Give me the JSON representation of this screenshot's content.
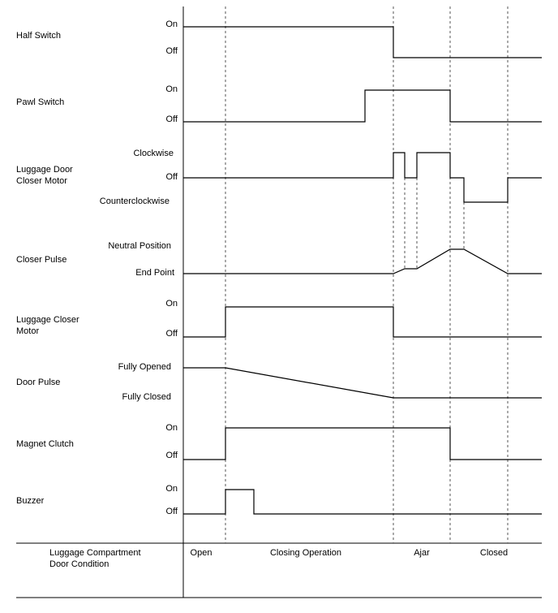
{
  "signals": [
    {
      "name": [
        "Half Switch"
      ],
      "states": [
        "On",
        "Off"
      ]
    },
    {
      "name": [
        "Pawl Switch"
      ],
      "states": [
        "On",
        "Off"
      ]
    },
    {
      "name": [
        "Luggage Door",
        "Closer Motor"
      ],
      "states": [
        "Clockwise",
        "Off",
        "Counterclockwise"
      ]
    },
    {
      "name": [
        "Closer Pulse"
      ],
      "states": [
        "Neutral Position",
        "End Point"
      ]
    },
    {
      "name": [
        "Luggage Closer",
        "Motor"
      ],
      "states": [
        "On",
        "Off"
      ]
    },
    {
      "name": [
        "Door Pulse"
      ],
      "states": [
        "Fully Opened",
        "Fully Closed"
      ]
    },
    {
      "name": [
        "Magnet Clutch"
      ],
      "states": [
        "On",
        "Off"
      ]
    },
    {
      "name": [
        "Buzzer"
      ],
      "states": [
        "On",
        "Off"
      ]
    }
  ],
  "condition": {
    "label": [
      "Luggage Compartment",
      "Door Condition"
    ],
    "phases": [
      "Open",
      "Closing Operation",
      "Ajar",
      "Closed"
    ]
  }
}
